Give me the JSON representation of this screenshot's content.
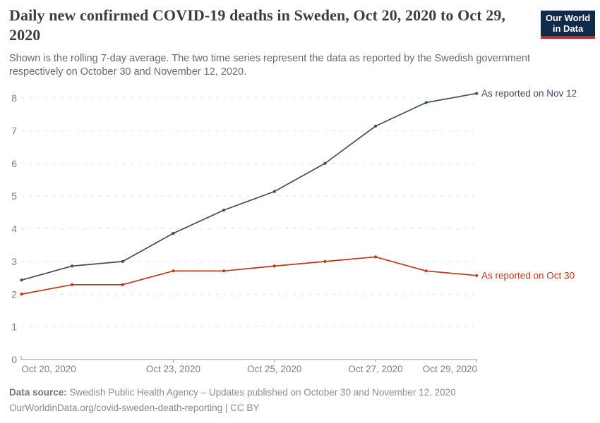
{
  "header": {
    "title": "Daily new confirmed COVID-19 deaths in Sweden, Oct 20, 2020 to Oct 29, 2020",
    "subtitle": "Shown is the rolling 7-day average. The two time series represent the data as reported by the Swedish government respectively on October 30 and November 12, 2020."
  },
  "logo": {
    "line1": "Our World",
    "line2": "in Data",
    "bg_color": "#102a4c",
    "bar_color": "#bf2e29"
  },
  "chart_data": {
    "type": "line",
    "title": "Daily new confirmed COVID-19 deaths in Sweden, Oct 20, 2020 to Oct 29, 2020",
    "x": [
      "Oct 20, 2020",
      "Oct 21, 2020",
      "Oct 22, 2020",
      "Oct 23, 2020",
      "Oct 24, 2020",
      "Oct 25, 2020",
      "Oct 26, 2020",
      "Oct 27, 2020",
      "Oct 28, 2020",
      "Oct 29, 2020"
    ],
    "series": [
      {
        "name": "As reported on Nov 12",
        "color": "#3C4E66",
        "values": [
          2.43,
          2.86,
          3.0,
          3.86,
          4.57,
          5.14,
          6.0,
          7.14,
          7.86,
          8.14
        ]
      },
      {
        "name": "As reported on Oct 30",
        "color": "#BB3A14",
        "values": [
          2.0,
          2.29,
          2.29,
          2.71,
          2.71,
          2.86,
          3.0,
          3.14,
          2.71,
          2.57
        ]
      }
    ],
    "ylim": [
      0,
      8
    ],
    "y_ticks": [
      0,
      1,
      2,
      3,
      4,
      5,
      6,
      7,
      8
    ],
    "x_tick_labels": [
      {
        "index": 0,
        "label": "Oct 20, 2020",
        "anchor": "start"
      },
      {
        "index": 3,
        "label": "Oct 23, 2020",
        "anchor": "middle"
      },
      {
        "index": 5,
        "label": "Oct 25, 2020",
        "anchor": "middle"
      },
      {
        "index": 7,
        "label": "Oct 27, 2020",
        "anchor": "middle"
      },
      {
        "index": 9,
        "label": "Oct 29, 2020",
        "anchor": "end"
      }
    ],
    "grid": "horizontal-dashed",
    "legend_position": "end-of-line-labels",
    "colors": {
      "gridline": "#e0e0e0",
      "axis_line": "#999999",
      "tick_label": "#7d7d7d"
    }
  },
  "footer": {
    "source_label": "Data source:",
    "source_text": "Swedish Public Health Agency – Updates published on October 30 and November 12, 2020",
    "note": "OurWorldinData.org/covid-sweden-death-reporting | CC BY"
  }
}
